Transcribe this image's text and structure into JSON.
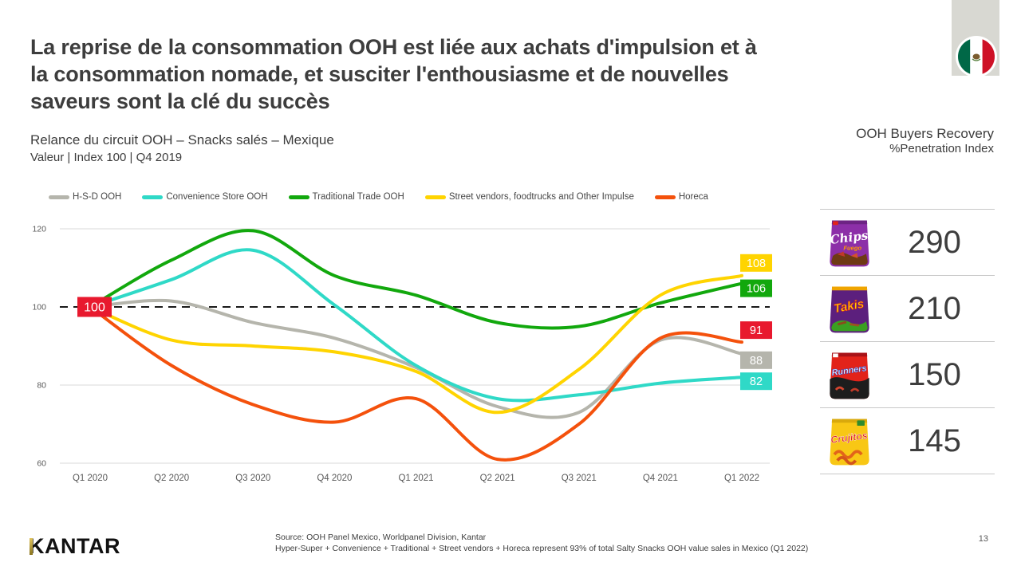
{
  "slide": {
    "title_lines": [
      "La reprise de la consommation OOH est liée aux achats d'impulsion et à",
      "la consommation nomade, et susciter l'enthousiasme et de nouvelles",
      "saveurs sont la clé du succès"
    ],
    "subtitle_line1": "Relance du circuit OOH – Snacks salés – Mexique",
    "subtitle_line2": "Valeur | Index 100 | Q4 2019",
    "logo_text": "KANTAR",
    "footer_source_line1": "Source: OOH Panel Mexico, Worldpanel Division, Kantar",
    "footer_source_line2": "Hyper-Super + Convenience + Traditional + Street vendors + Horeca represent 93% of total Salty Snacks OOH  value sales in Mexico (Q1 2022)",
    "page_number": "13"
  },
  "right_panel": {
    "title_line1": "OOH Buyers Recovery",
    "title_line2": "%Penetration Index",
    "items": [
      {
        "brand": "Chips",
        "variant": "Fuego",
        "value": "290",
        "bag_color": "#8c2fa8"
      },
      {
        "brand": "Takis",
        "variant": "",
        "value": "210",
        "bag_color": "#5c1f7d"
      },
      {
        "brand": "Runners",
        "variant": "",
        "value": "150",
        "bag_color": "#e2231a"
      },
      {
        "brand": "Crujitos",
        "variant": "",
        "value": "145",
        "bag_color": "#f8c715"
      }
    ]
  },
  "chart_data": {
    "type": "line",
    "title": "",
    "categories": [
      "Q1 2020",
      "Q2 2020",
      "Q3 2020",
      "Q4 2020",
      "Q1 2021",
      "Q2 2021",
      "Q3 2021",
      "Q4 2021",
      "Q1 2022"
    ],
    "series": [
      {
        "name": "H-S-D OOH",
        "color": "#b5b5ac",
        "label_color": "#b5b5ac",
        "end_label": "88",
        "values": [
          100,
          101.5,
          96,
          92,
          84.5,
          74.5,
          73,
          91.5,
          88
        ],
        "label_y_offset": 8
      },
      {
        "name": "Convenience Store OOH",
        "color": "#2fd9c7",
        "label_color": "#2fd9c7",
        "end_label": "82",
        "values": [
          100,
          107,
          114.5,
          100.5,
          85,
          76.5,
          77.5,
          80.5,
          82
        ],
        "label_y_offset": 5
      },
      {
        "name": "Traditional Trade OOH",
        "color": "#12a80d",
        "label_color": "#12a80d",
        "end_label": "106",
        "values": [
          100,
          112,
          119.5,
          108,
          103,
          96,
          95,
          101,
          106
        ],
        "label_y_offset": 6
      },
      {
        "name": "Street vendors, foodtrucks and Other Impulse",
        "color": "#ffd400",
        "label_color": "#ffd400",
        "end_label": "108",
        "values": [
          100,
          91.5,
          90,
          88.5,
          83.5,
          73,
          84,
          103,
          108
        ],
        "label_y_offset": -16
      },
      {
        "name": "Horeca",
        "color": "#f4510c",
        "label_color": "#e8192e",
        "end_label": "91",
        "values": [
          100,
          85,
          75,
          70.5,
          76.5,
          61,
          70,
          92,
          91
        ],
        "label_y_offset": -15
      }
    ],
    "start_label": {
      "text": "100",
      "color": "#e8192e"
    },
    "baseline_value": 100,
    "ylim": [
      60,
      120
    ],
    "yticks": [
      120,
      100,
      80,
      60
    ],
    "grid": true,
    "legend_position": "top"
  },
  "flag": {
    "name": "mexico",
    "green": "#006847",
    "white": "#ffffff",
    "red": "#ce1126",
    "emblem": "#7a5c2e"
  }
}
